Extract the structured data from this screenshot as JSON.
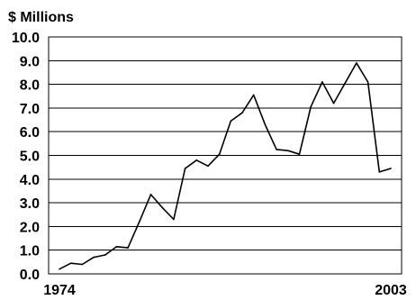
{
  "chart_data": {
    "type": "line",
    "ylabel": "$ Millions",
    "ylim": [
      0,
      10
    ],
    "yticks": [
      "0.0",
      "1.0",
      "2.0",
      "3.0",
      "4.0",
      "5.0",
      "6.0",
      "7.0",
      "8.0",
      "9.0",
      "10.0"
    ],
    "xlim": [
      1974,
      2003
    ],
    "xtick_labels": [
      {
        "value": 1974,
        "label": "1974"
      },
      {
        "value": 2003,
        "label": "2003"
      }
    ],
    "grid": "horizontal",
    "series": [
      {
        "x": [
          1974,
          1975,
          1976,
          1977,
          1978,
          1979,
          1980,
          1981,
          1982,
          1983,
          1984,
          1985,
          1986,
          1987,
          1988,
          1989,
          1990,
          1991,
          1992,
          1993,
          1994,
          1995,
          1996,
          1997,
          1998,
          1999,
          2000,
          2001,
          2002,
          2003
        ],
        "values": [
          0.2,
          0.45,
          0.4,
          0.7,
          0.8,
          1.15,
          1.1,
          2.2,
          3.35,
          2.8,
          2.3,
          4.45,
          4.8,
          4.55,
          5.05,
          6.45,
          6.8,
          7.55,
          6.3,
          5.25,
          5.2,
          5.05,
          7.05,
          8.1,
          7.2,
          8.05,
          8.9,
          8.1,
          4.3,
          4.45
        ]
      }
    ]
  }
}
